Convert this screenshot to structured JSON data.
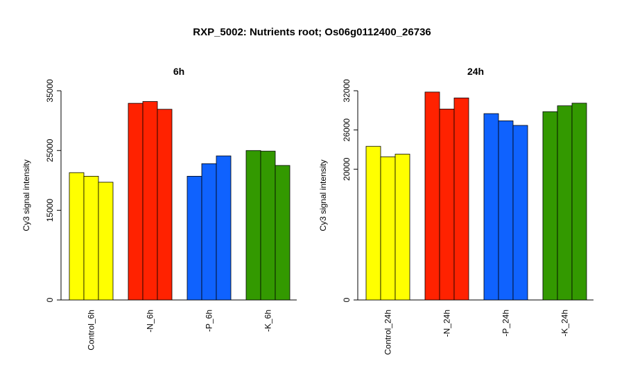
{
  "title": "RXP_5002: Nutrients root; Os06g0112400_26736",
  "colors": {
    "Control": "#ffff00",
    "N": "#ff2200",
    "P": "#0f62fe",
    "K": "#339900"
  },
  "chart_data": [
    {
      "type": "bar",
      "title": "6h",
      "ylabel": "Cy3 signal intensity",
      "ylim": [
        0,
        35000
      ],
      "yticks": [
        0,
        15000,
        25000,
        35000
      ],
      "ytick_labels": [
        "0",
        "15000",
        "25000",
        "35000"
      ],
      "categories": [
        "Control_6h",
        "-N_6h",
        "-P_6h",
        "-K_6h"
      ],
      "group_colors": [
        "#ffff00",
        "#ff2200",
        "#0f62fe",
        "#339900"
      ],
      "groups": [
        {
          "category": "Control_6h",
          "values": [
            21300,
            20700,
            19700
          ]
        },
        {
          "category": "-N_6h",
          "values": [
            32900,
            33200,
            31900
          ]
        },
        {
          "category": "-P_6h",
          "values": [
            20700,
            22800,
            24100
          ]
        },
        {
          "category": "-K_6h",
          "values": [
            25000,
            24900,
            22500
          ]
        }
      ]
    },
    {
      "type": "bar",
      "title": "24h",
      "ylabel": "Cy3 signal intensity",
      "ylim": [
        0,
        32000
      ],
      "yticks": [
        0,
        20000,
        26000,
        32000
      ],
      "ytick_labels": [
        "0",
        "20000",
        "26000",
        "32000"
      ],
      "categories": [
        "Control_24h",
        "-N_24h",
        "-P_24h",
        "-K_24h"
      ],
      "group_colors": [
        "#ffff00",
        "#ff2200",
        "#0f62fe",
        "#339900"
      ],
      "groups": [
        {
          "category": "Control_24h",
          "values": [
            23500,
            21900,
            22300
          ]
        },
        {
          "category": "-N_24h",
          "values": [
            31800,
            29200,
            30900
          ]
        },
        {
          "category": "-P_24h",
          "values": [
            28500,
            27400,
            26700
          ]
        },
        {
          "category": "-K_24h",
          "values": [
            28800,
            29700,
            30100
          ]
        }
      ]
    }
  ]
}
